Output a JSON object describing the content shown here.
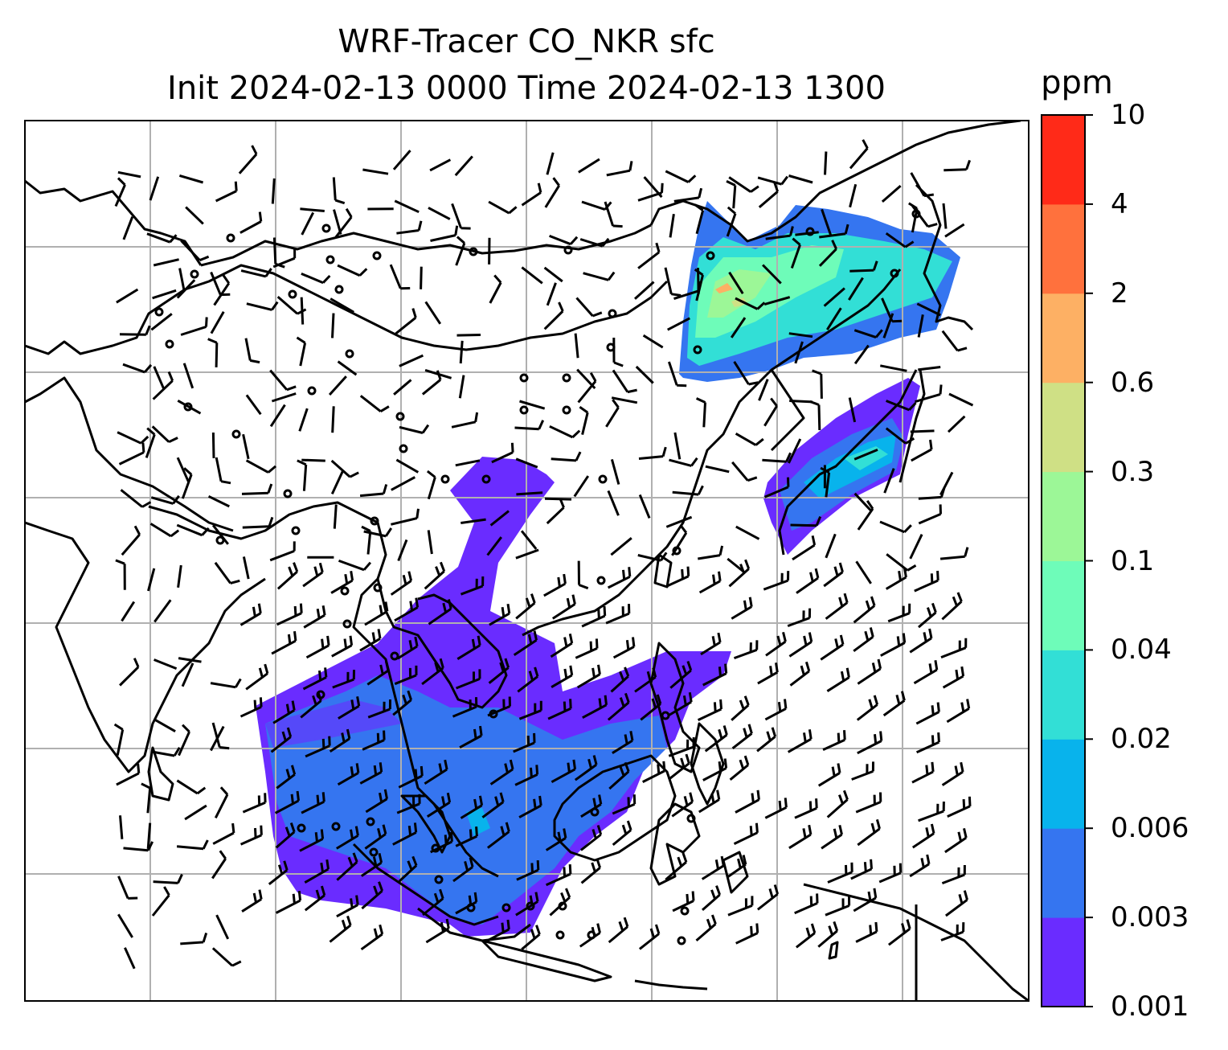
{
  "title": {
    "line1": "WRF-Tracer CO_NKR sfc",
    "line2": "Init 2024-02-13 0000 Time 2024-02-13 1300"
  },
  "colorbar": {
    "unit": "ppm",
    "levels": [
      "0.001",
      "0.003",
      "0.006",
      "0.02",
      "0.04",
      "0.1",
      "0.3",
      "0.6",
      "2",
      "4",
      "10"
    ],
    "colors": [
      "#6a2cff",
      "#3575f0",
      "#08b3ec",
      "#32dfd6",
      "#6efcb9",
      "#9cf797",
      "#cfe085",
      "#fdb064",
      "#ff713d",
      "#ff2a18"
    ]
  },
  "map": {
    "gridlines": true,
    "coastline_color": "#000000",
    "gridline_color": "#b0b0b0",
    "wind_barbs": true
  }
}
